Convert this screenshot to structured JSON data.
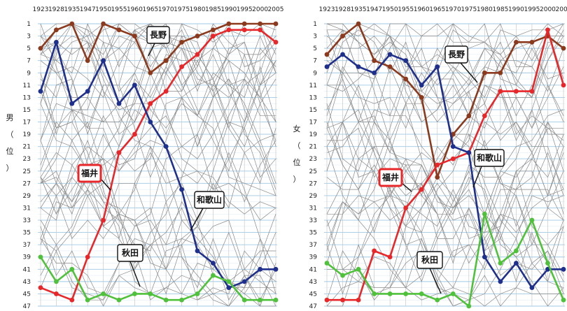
{
  "chart_data": [
    {
      "type": "line",
      "title": "",
      "ylabel": "男（位）",
      "ylabel_chars": [
        "男",
        "（",
        "位",
        "）"
      ],
      "x_tick_labels": [
        "1923",
        "1928",
        "1935",
        "1947",
        "1950",
        "1955",
        "1960",
        "1965",
        "1970",
        "1975",
        "1980",
        "1985",
        "1990",
        "1995",
        "2000",
        "2005"
      ],
      "y_tick_labels": [
        1,
        3,
        5,
        7,
        9,
        11,
        13,
        15,
        17,
        19,
        21,
        23,
        25,
        27,
        29,
        31,
        33,
        35,
        37,
        39,
        41,
        43,
        45,
        47
      ],
      "ylim": [
        1,
        47
      ],
      "y_inverted": true,
      "grid": true,
      "background_series": "other prefectures (gray)",
      "series": [
        {
          "name": "長野",
          "color": "#8b3a1e",
          "values": [
            5,
            2,
            1,
            7,
            1,
            2,
            3,
            9,
            7,
            4,
            3,
            2,
            1,
            1,
            1,
            1
          ]
        },
        {
          "name": "福井",
          "color": "#e8272a",
          "values": [
            44,
            45,
            46,
            39,
            33,
            22,
            19,
            14,
            12,
            8,
            6,
            3,
            2,
            2,
            2,
            4
          ]
        },
        {
          "name": "和歌山",
          "color": "#1f2f8c",
          "values": [
            12,
            4,
            14,
            12,
            7,
            14,
            11,
            17,
            21,
            28,
            38,
            40,
            44,
            43,
            41,
            41
          ]
        },
        {
          "name": "秋田",
          "color": "#4fc13a",
          "values": [
            39,
            43,
            41,
            46,
            45,
            46,
            45,
            45,
            46,
            46,
            45,
            42,
            43,
            46,
            46,
            46
          ]
        }
      ]
    },
    {
      "type": "line",
      "title": "",
      "ylabel": "女（位）",
      "ylabel_chars": [
        "女",
        "（",
        "位",
        "）"
      ],
      "x_tick_labels": [
        "1923",
        "1928",
        "1935",
        "1947",
        "1950",
        "1955",
        "1960",
        "1965",
        "1970",
        "1975",
        "1980",
        "1985",
        "1990",
        "1995",
        "2000",
        "2005"
      ],
      "y_tick_labels": [
        1,
        3,
        5,
        7,
        9,
        11,
        13,
        15,
        17,
        19,
        21,
        23,
        25,
        27,
        29,
        31,
        33,
        35,
        37,
        39,
        41,
        43,
        45,
        47
      ],
      "ylim": [
        1,
        47
      ],
      "y_inverted": true,
      "grid": true,
      "background_series": "other prefectures (gray)",
      "series": [
        {
          "name": "長野",
          "color": "#8b3a1e",
          "values": [
            6,
            3,
            1,
            7,
            8,
            10,
            13,
            26,
            19,
            16,
            9,
            9,
            4,
            4,
            3,
            5
          ]
        },
        {
          "name": "福井",
          "color": "#e8272a",
          "values": [
            46,
            46,
            46,
            38,
            39,
            31,
            28,
            24,
            23,
            22,
            16,
            12,
            12,
            12,
            2,
            11
          ]
        },
        {
          "name": "和歌山",
          "color": "#1f2f8c",
          "values": [
            8,
            6,
            8,
            9,
            6,
            7,
            11,
            8,
            21,
            22,
            39,
            43,
            40,
            44,
            41,
            41
          ]
        },
        {
          "name": "秋田",
          "color": "#4fc13a",
          "values": [
            40,
            42,
            41,
            45,
            45,
            45,
            45,
            46,
            45,
            47,
            32,
            40,
            38,
            33,
            40,
            46
          ]
        }
      ]
    }
  ],
  "callouts": [
    {
      "chart": 0,
      "series": "長野",
      "label": "長野",
      "boxed": false
    },
    {
      "chart": 0,
      "series": "福井",
      "label": "福井",
      "boxed": true
    },
    {
      "chart": 0,
      "series": "和歌山",
      "label": "和歌山",
      "boxed": false
    },
    {
      "chart": 0,
      "series": "秋田",
      "label": "秋田",
      "boxed": false
    },
    {
      "chart": 1,
      "series": "長野",
      "label": "長野",
      "boxed": false
    },
    {
      "chart": 1,
      "series": "福井",
      "label": "福井",
      "boxed": true
    },
    {
      "chart": 1,
      "series": "和歌山",
      "label": "和歌山",
      "boxed": false
    },
    {
      "chart": 1,
      "series": "秋田",
      "label": "秋田",
      "boxed": false
    }
  ]
}
